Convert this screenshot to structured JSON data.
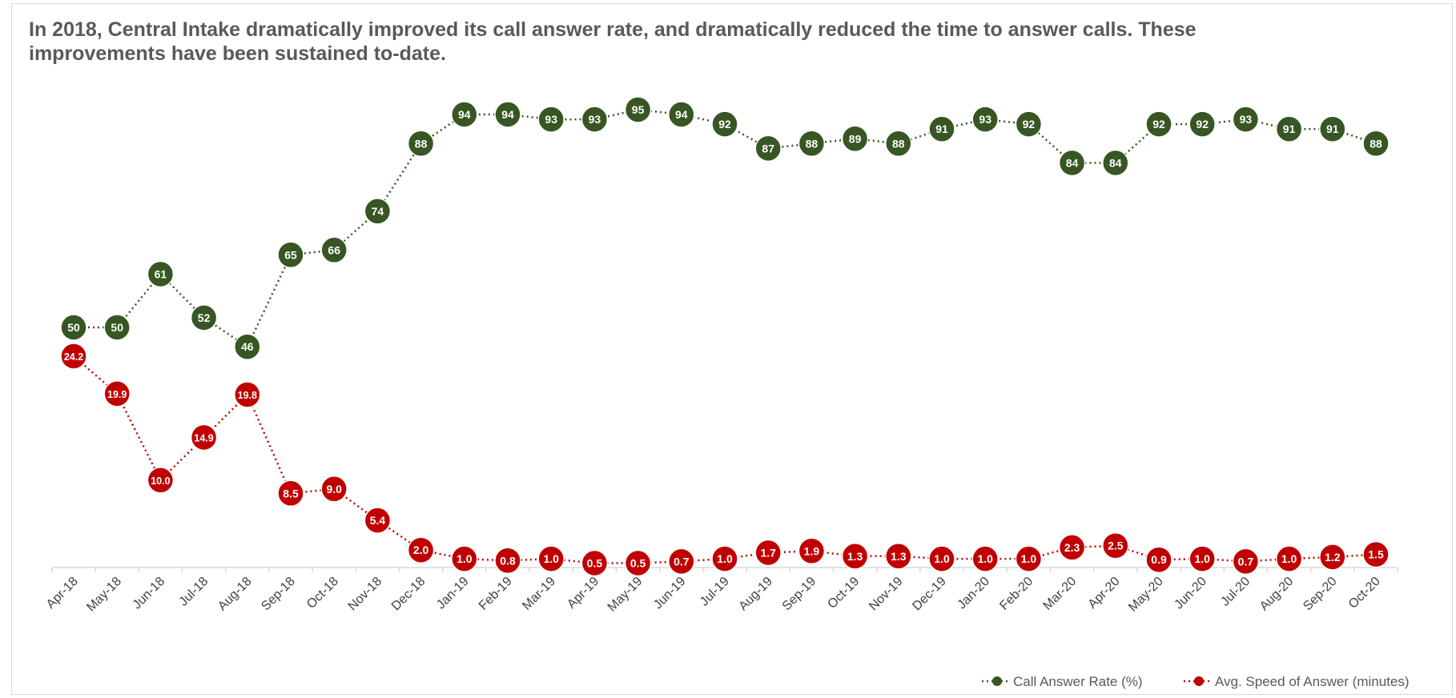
{
  "chart_data": {
    "type": "line",
    "title": "In 2018, Central Intake dramatically improved its call answer rate, and dramatically reduced the time to answer calls. These improvements have been sustained to-date.",
    "categories": [
      "Apr-18",
      "May-18",
      "Jun-18",
      "Jul-18",
      "Aug-18",
      "Sep-18",
      "Oct-18",
      "Nov-18",
      "Dec-18",
      "Jan-19",
      "Feb-19",
      "Mar-19",
      "Apr-19",
      "May-19",
      "Jun-19",
      "Jul-19",
      "Aug-19",
      "Sep-19",
      "Oct-19",
      "Nov-19",
      "Dec-19",
      "Jan-20",
      "Feb-20",
      "Mar-20",
      "Apr-20",
      "May-20",
      "Jun-20",
      "Jul-20",
      "Aug-20",
      "Sep-20",
      "Oct-20"
    ],
    "series": [
      {
        "name": "Call Answer Rate (%)",
        "color": "#375623",
        "values": [
          50,
          50,
          61,
          52,
          46,
          65,
          66,
          74,
          88,
          94,
          94,
          93,
          93,
          95,
          94,
          92,
          87,
          88,
          89,
          88,
          91,
          93,
          92,
          84,
          84,
          92,
          92,
          93,
          91,
          91,
          88
        ],
        "labels": [
          "50",
          "50",
          "61",
          "52",
          "46",
          "65",
          "66",
          "74",
          "88",
          "94",
          "94",
          "93",
          "93",
          "95",
          "94",
          "92",
          "87",
          "88",
          "89",
          "88",
          "91",
          "93",
          "92",
          "84",
          "84",
          "92",
          "92",
          "93",
          "91",
          "91",
          "88"
        ]
      },
      {
        "name": "Avg. Speed of Answer (minutes)",
        "color": "#c00000",
        "values": [
          24.2,
          19.9,
          10.0,
          14.9,
          19.8,
          8.5,
          9.0,
          5.4,
          2.0,
          1.0,
          0.8,
          1.0,
          0.5,
          0.5,
          0.7,
          1.0,
          1.7,
          1.9,
          1.3,
          1.3,
          1.0,
          1.0,
          1.0,
          2.3,
          2.5,
          0.9,
          1.0,
          0.7,
          1.0,
          1.2,
          1.5
        ],
        "labels": [
          "24.2",
          "19.9",
          "10.0",
          "14.9",
          "19.8",
          "8.5",
          "9.0",
          "5.4",
          "2.0",
          "1.0",
          "0.8",
          "1.0",
          "0.5",
          "0.5",
          "0.7",
          "1.0",
          "1.7",
          "1.9",
          "1.3",
          "1.3",
          "1.0",
          "1.0",
          "1.0",
          "2.3",
          "2.5",
          "0.9",
          "1.0",
          "0.7",
          "1.0",
          "1.2",
          "1.5"
        ]
      }
    ],
    "legend_position": "bottom-right",
    "grid": false
  }
}
